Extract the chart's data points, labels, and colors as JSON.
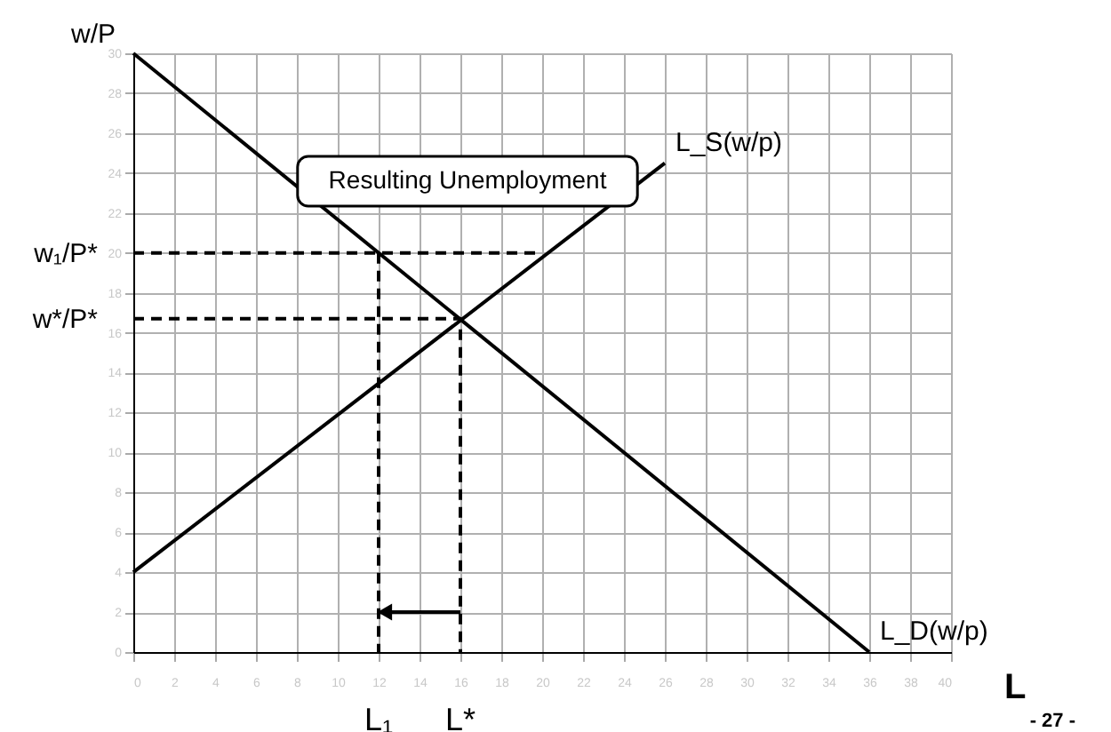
{
  "chart_data": {
    "type": "line",
    "xlabel": "L",
    "ylabel": "w/P",
    "xlim": [
      0,
      40
    ],
    "ylim": [
      0,
      30
    ],
    "xticks": [
      0,
      2,
      4,
      6,
      8,
      10,
      12,
      14,
      16,
      18,
      20,
      22,
      24,
      26,
      28,
      30,
      32,
      34,
      36,
      38,
      40
    ],
    "yticks": [
      0,
      2,
      4,
      6,
      8,
      10,
      12,
      14,
      16,
      18,
      20,
      22,
      24,
      26,
      28,
      30
    ],
    "grid": true,
    "marker": "none",
    "series": [
      {
        "name": "L_S(w/p)",
        "color": "#000000",
        "x": [
          0,
          26
        ],
        "values": [
          4,
          24.5
        ]
      },
      {
        "name": "L_D(w/p)",
        "color": "#000000",
        "x": [
          0,
          36
        ],
        "values": [
          30,
          0
        ]
      },
      {
        "color": "#000000",
        "line_style": "dashed",
        "x": [
          0,
          20
        ],
        "values": [
          20,
          20
        ]
      },
      {
        "color": "#000000",
        "line_style": "dashed",
        "x": [
          12,
          12
        ],
        "values": [
          20,
          0
        ]
      },
      {
        "color": "#000000",
        "line_style": "dashed",
        "x": [
          0,
          16,
          16
        ],
        "values": [
          16.7,
          16.7,
          0
        ]
      },
      {
        "color": "#000000",
        "marker": "triangle",
        "x": [
          16,
          12.3
        ],
        "values": [
          2,
          2
        ]
      }
    ],
    "annotations": [
      "Resulting Unemployment",
      {
        "text": "w₁/P*",
        "x": 0,
        "y": 20
      },
      {
        "text": "w*/P*",
        "x": 0,
        "y": 16.7
      },
      {
        "text": "L₁",
        "x": 12,
        "y": 0
      },
      {
        "text": "L*",
        "x": 16,
        "y": 0
      },
      "- 27 -"
    ]
  }
}
